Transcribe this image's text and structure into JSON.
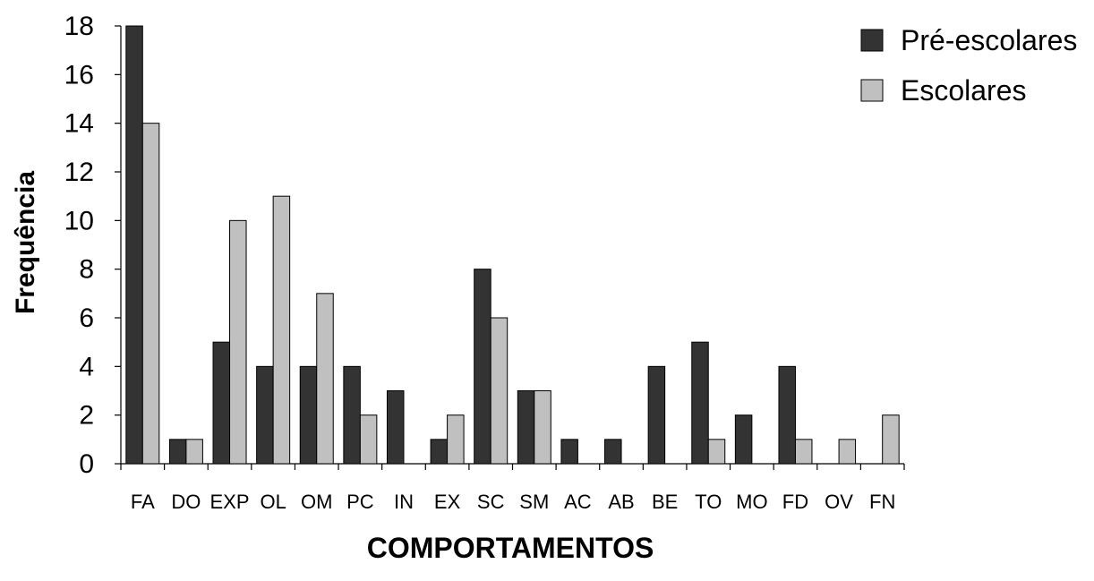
{
  "chart_data": {
    "type": "bar",
    "xlabel": "COMPORTAMENTOS",
    "ylabel": "Frequência",
    "ylim": [
      0,
      18
    ],
    "yticks": [
      0,
      2,
      4,
      6,
      8,
      10,
      12,
      14,
      16,
      18
    ],
    "grid": false,
    "legend_position": "top-right",
    "categories": [
      "FA",
      "DO",
      "EXP",
      "OL",
      "OM",
      "PC",
      "IN",
      "EX",
      "SC",
      "SM",
      "AC",
      "AB",
      "BE",
      "TO",
      "MO",
      "FD",
      "OV",
      "FN"
    ],
    "series": [
      {
        "name": "Pré-escolares",
        "color": "#333333",
        "values": [
          18,
          1,
          5,
          4,
          4,
          4,
          3,
          1,
          8,
          3,
          1,
          1,
          4,
          5,
          2,
          4,
          0,
          0
        ]
      },
      {
        "name": "Escolares",
        "color": "#c0c0c0",
        "values": [
          14,
          1,
          10,
          11,
          7,
          2,
          0,
          2,
          6,
          3,
          0,
          0,
          0,
          1,
          0,
          1,
          1,
          2
        ]
      }
    ]
  }
}
